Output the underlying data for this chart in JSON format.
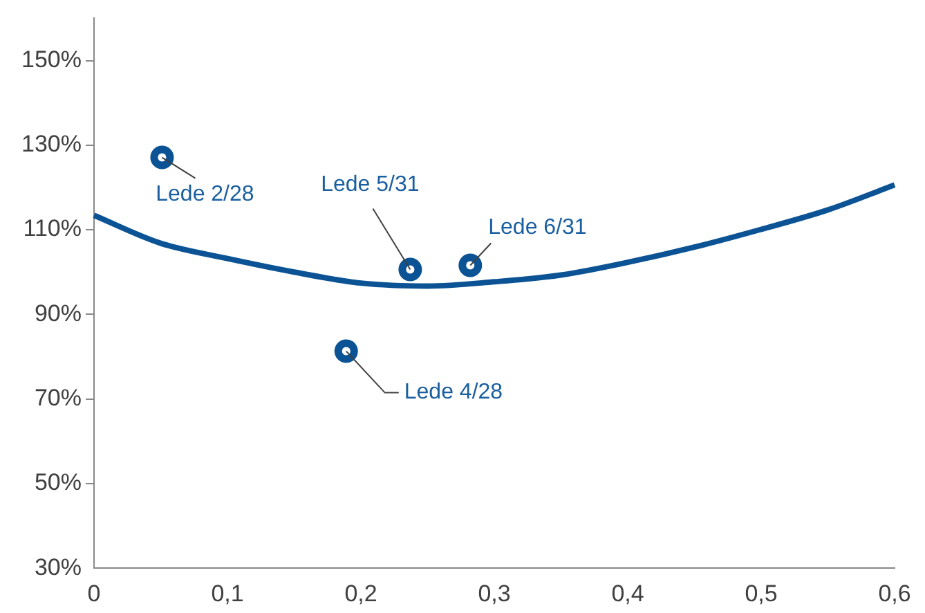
{
  "chart_data": {
    "type": "line",
    "x": [
      0,
      0.05,
      0.1,
      0.15,
      0.2,
      0.25,
      0.3,
      0.35,
      0.4,
      0.45,
      0.5,
      0.55,
      0.6
    ],
    "series": [
      {
        "color": "#0b5394",
        "values": [
          113.4,
          106.8,
          103.2,
          100,
          97.4,
          96.7,
          97.7,
          99.3,
          102.3,
          105.9,
          110.1,
          114.7,
          120.6
        ],
        "marker": "none",
        "line_style": "solid"
      },
      {
        "type": "scatter",
        "color": "#0b5394",
        "x": [
          0.051,
          0.237,
          0.282,
          0.189
        ],
        "values": [
          127.1,
          100.6,
          101.6,
          81.3
        ],
        "marker": "circle"
      }
    ],
    "xlim": [
      0,
      0.6
    ],
    "xticks": [
      0,
      {
        "value": 0.1,
        "label": "0,1"
      },
      {
        "value": 0.2,
        "label": "0,2"
      },
      {
        "value": 0.3,
        "label": "0,3"
      },
      {
        "value": 0.4,
        "label": "0,4"
      },
      {
        "value": 0.5,
        "label": "0,5"
      },
      {
        "value": 0.6,
        "label": "0,6"
      }
    ],
    "ylim": [
      30,
      160
    ],
    "yticks": [
      {
        "value": 30,
        "label": "30%"
      },
      {
        "value": 50,
        "label": "50%"
      },
      {
        "value": 70,
        "label": "70%"
      },
      {
        "value": 90,
        "label": "90%"
      },
      {
        "value": 110,
        "label": "110%"
      },
      {
        "value": 130,
        "label": "130%"
      },
      {
        "value": 150,
        "label": "150%"
      }
    ],
    "grid": false,
    "legend": false,
    "annotations": [
      {
        "text": "Lede 2/28",
        "x": 0.051,
        "y": 127.1
      },
      {
        "text": "Lede 5/31",
        "x": 0.237,
        "y": 100.6
      },
      {
        "text": "Lede 6/31",
        "x": 0.282,
        "y": 101.6
      },
      {
        "text": "Lede 4/28",
        "x": 0.189,
        "y": 81.3
      }
    ]
  }
}
